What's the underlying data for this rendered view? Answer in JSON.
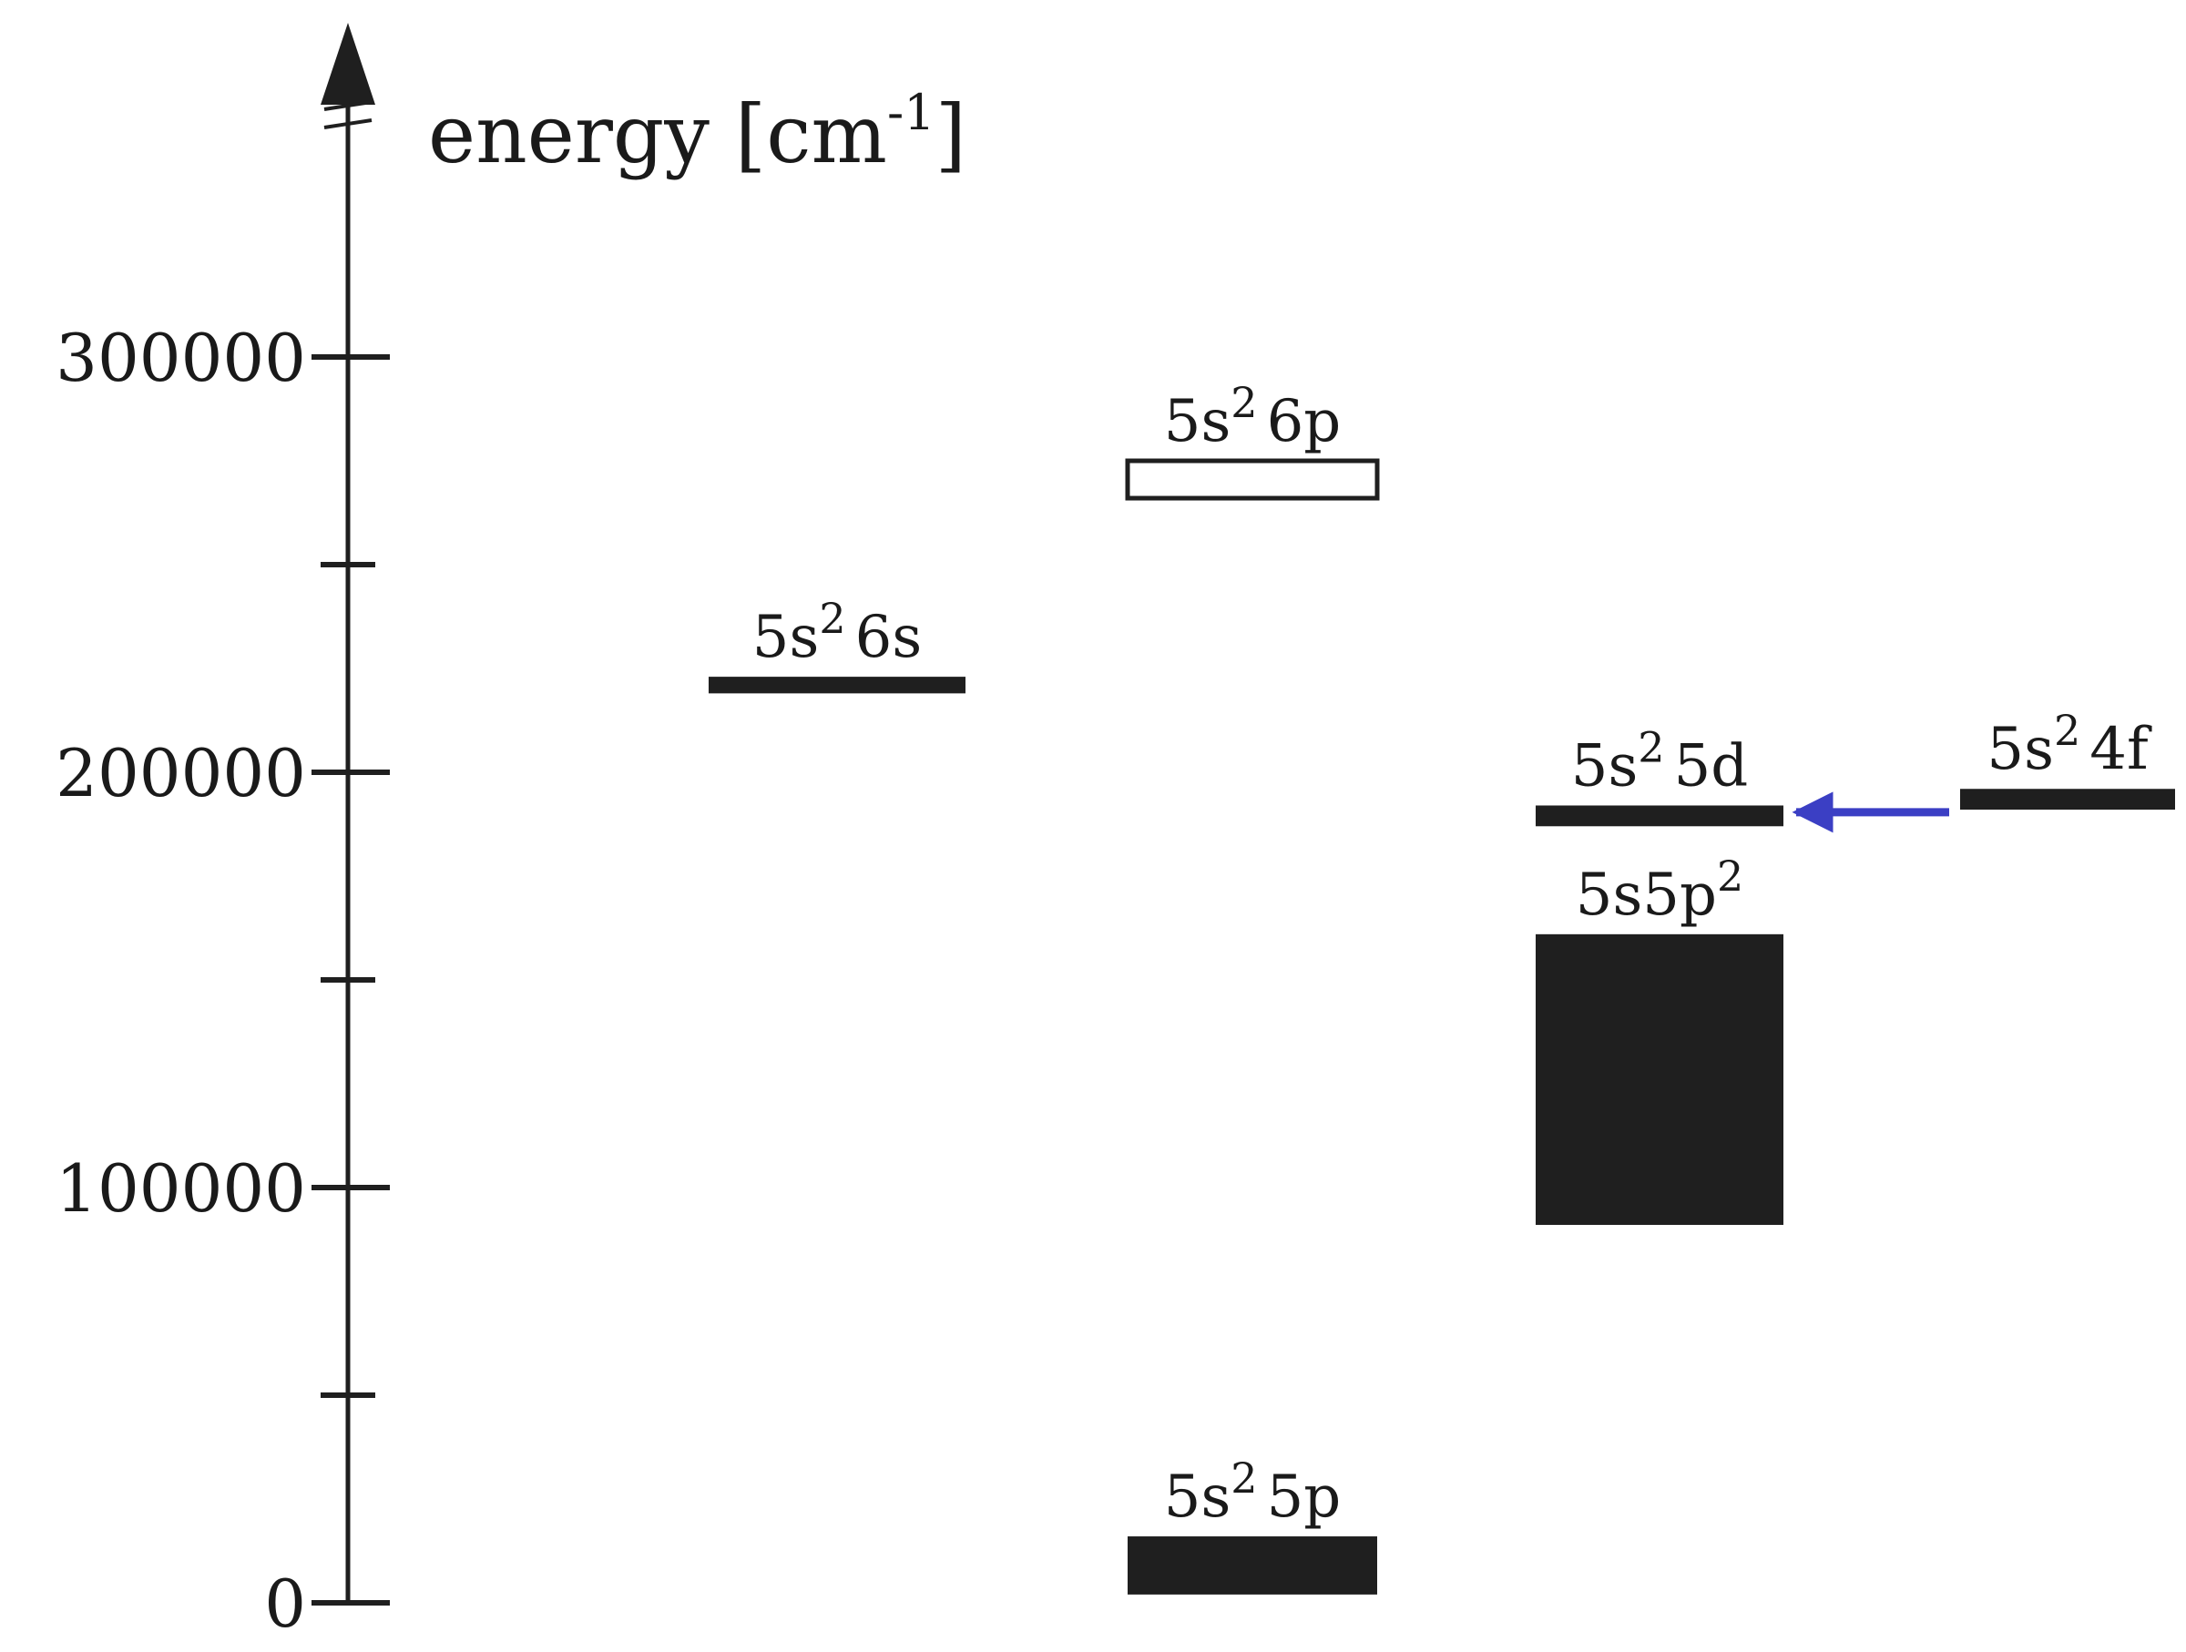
{
  "diagram": {
    "axis": {
      "title": "energy [cm",
      "title_sup": "-1",
      "title_close": "]",
      "min": 0,
      "max": 350000,
      "major_ticks": [
        {
          "value": 0,
          "label": "0"
        },
        {
          "value": 100000,
          "label": "100000"
        },
        {
          "value": 200000,
          "label": "200000"
        },
        {
          "value": 300000,
          "label": "300000"
        }
      ],
      "minor_ticks": [
        50000,
        150000,
        250000
      ]
    },
    "levels": [
      {
        "id": "5s2-5p",
        "column": 2,
        "low": 2000,
        "high": 16000,
        "fill": "solid",
        "label_base": "5s",
        "label_sup": "2",
        "label_rest": "5p"
      },
      {
        "id": "5s2-6s",
        "column": 1,
        "low": 219000,
        "high": 223000,
        "fill": "solid",
        "label_base": "5s",
        "label_sup": "2",
        "label_rest": "6s"
      },
      {
        "id": "5s2-6p",
        "column": 2,
        "low": 266000,
        "high": 275000,
        "fill": "open",
        "label_base": "5s",
        "label_sup": "2",
        "label_rest": "6p"
      },
      {
        "id": "5s5p2",
        "column": 3,
        "low": 91000,
        "high": 161000,
        "fill": "solid",
        "label_base": "5s5p",
        "label_sup": "2",
        "label_rest": ""
      },
      {
        "id": "5s2-5d",
        "column": 3,
        "low": 187000,
        "high": 192000,
        "fill": "solid",
        "label_base": "5s",
        "label_sup": "2",
        "label_rest": "5d"
      },
      {
        "id": "5s2-4f",
        "column": 4,
        "low": 191000,
        "high": 196000,
        "fill": "solid",
        "label_base": "5s",
        "label_sup": "2",
        "label_rest": "4f"
      }
    ],
    "arrow": {
      "from": "5s2-4f",
      "to": "5s2-5d",
      "color": "#3b3fc4"
    },
    "colors": {
      "ink": "#1f1f1f",
      "arrow": "#3b3fc4"
    }
  }
}
